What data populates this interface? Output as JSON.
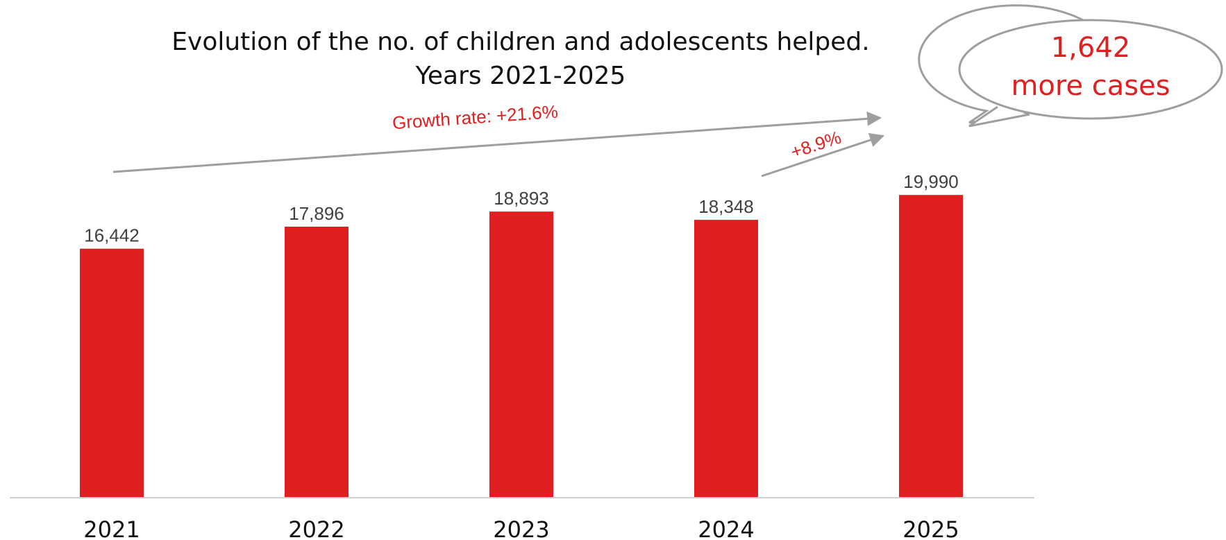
{
  "chart_data": {
    "type": "bar",
    "title": "Evolution of the no. of children and adolescents helped.",
    "subtitle": "Years 2021-2025",
    "categories": [
      "2021",
      "2022",
      "2023",
      "2024",
      "2025"
    ],
    "values": [
      16442,
      17896,
      18893,
      18348,
      19990
    ],
    "value_labels": [
      "16,442",
      "17,896",
      "18,893",
      "18,348",
      "19,990"
    ],
    "ylim": [
      0,
      22000
    ],
    "grid": false,
    "legend": "none",
    "bar_color": "#e02020",
    "annotations": {
      "growth_total": "Growth rate: +21.6%",
      "growth_last": "+8.9%",
      "callout_number": "1,642",
      "callout_text": "more cases"
    }
  }
}
